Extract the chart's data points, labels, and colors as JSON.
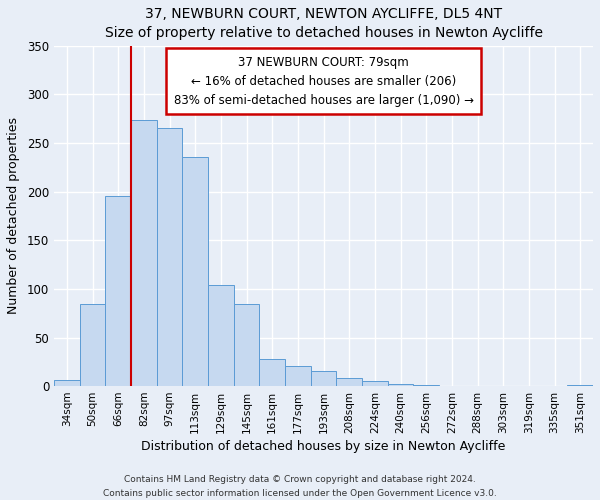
{
  "title": "37, NEWBURN COURT, NEWTON AYCLIFFE, DL5 4NT",
  "subtitle": "Size of property relative to detached houses in Newton Aycliffe",
  "xlabel": "Distribution of detached houses by size in Newton Aycliffe",
  "ylabel": "Number of detached properties",
  "footer_line1": "Contains HM Land Registry data © Crown copyright and database right 2024.",
  "footer_line2": "Contains public sector information licensed under the Open Government Licence v3.0.",
  "bar_labels": [
    "34sqm",
    "50sqm",
    "66sqm",
    "82sqm",
    "97sqm",
    "113sqm",
    "129sqm",
    "145sqm",
    "161sqm",
    "177sqm",
    "193sqm",
    "208sqm",
    "224sqm",
    "240sqm",
    "256sqm",
    "272sqm",
    "288sqm",
    "303sqm",
    "319sqm",
    "335sqm",
    "351sqm"
  ],
  "bar_values": [
    6,
    84,
    196,
    274,
    265,
    236,
    104,
    84,
    28,
    21,
    16,
    8,
    5,
    2,
    1,
    0,
    0,
    0,
    0,
    0,
    1
  ],
  "bar_color": "#c6d9f0",
  "bar_edge_color": "#5b9bd5",
  "reference_line_color": "#cc0000",
  "annotation_title": "37 NEWBURN COURT: 79sqm",
  "annotation_line1": "← 16% of detached houses are smaller (206)",
  "annotation_line2": "83% of semi-detached houses are larger (1,090) →",
  "annotation_box_color": "#ffffff",
  "annotation_box_edge_color": "#cc0000",
  "ylim": [
    0,
    350
  ],
  "yticks": [
    0,
    50,
    100,
    150,
    200,
    250,
    300,
    350
  ],
  "background_color": "#e8eef7"
}
